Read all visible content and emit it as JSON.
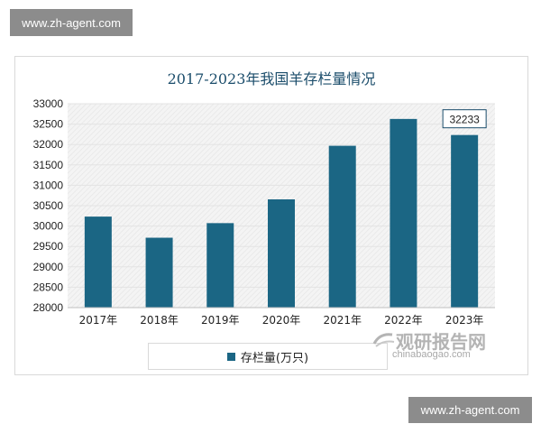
{
  "watermark": {
    "top": "www.zh-agent.com",
    "bottom": "www.zh-agent.com"
  },
  "source_logo": {
    "name": "观研报告网",
    "url": "chinabaogao.com"
  },
  "colors": {
    "bar": "#1b6684",
    "title": "#1b4d6b",
    "grid": "#e3e3e3"
  },
  "chart_data": {
    "type": "bar",
    "title": "2017-2023年我国羊存栏量情况",
    "categories": [
      "2017年",
      "2018年",
      "2019年",
      "2020年",
      "2021年",
      "2022年",
      "2023年"
    ],
    "series": [
      {
        "name": "存栏量(万只)",
        "values": [
          30232,
          29714,
          30072,
          30655,
          31969,
          32627,
          32233
        ]
      }
    ],
    "ylim": [
      28000,
      33000
    ],
    "yticks": [
      28000,
      28500,
      29000,
      29500,
      30000,
      30500,
      31000,
      31500,
      32000,
      32500,
      33000
    ],
    "data_labels": [
      {
        "category": "2023年",
        "text": "32233"
      }
    ],
    "legend": "bottom",
    "grid": true
  }
}
